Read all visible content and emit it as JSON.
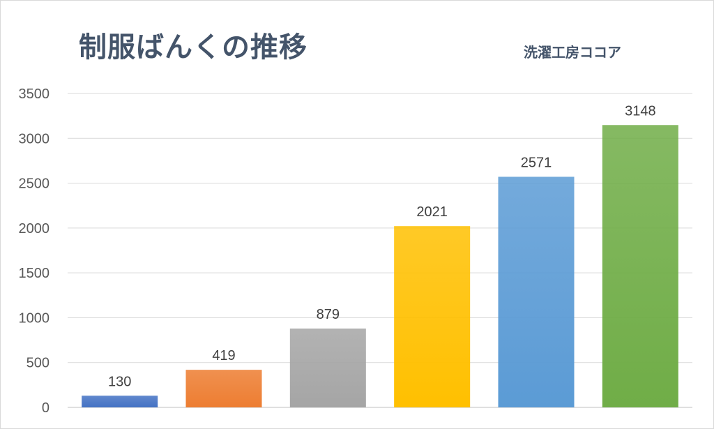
{
  "chart_data": {
    "type": "bar",
    "title": "制服ばんくの推移",
    "subtitle": "洗濯工房ココア",
    "categories": [
      "",
      "",
      "",
      "",
      "",
      ""
    ],
    "values": [
      130,
      419,
      879,
      2021,
      2571,
      3148
    ],
    "colors": [
      "#4472c4",
      "#ed7d31",
      "#a5a5a5",
      "#ffc000",
      "#5b9bd5",
      "#70ad47"
    ],
    "ylim": [
      0,
      3500
    ],
    "yticks": [
      0,
      500,
      1000,
      1500,
      2000,
      2500,
      3000,
      3500
    ],
    "grid": true,
    "legend": "none",
    "data_labels": true
  }
}
